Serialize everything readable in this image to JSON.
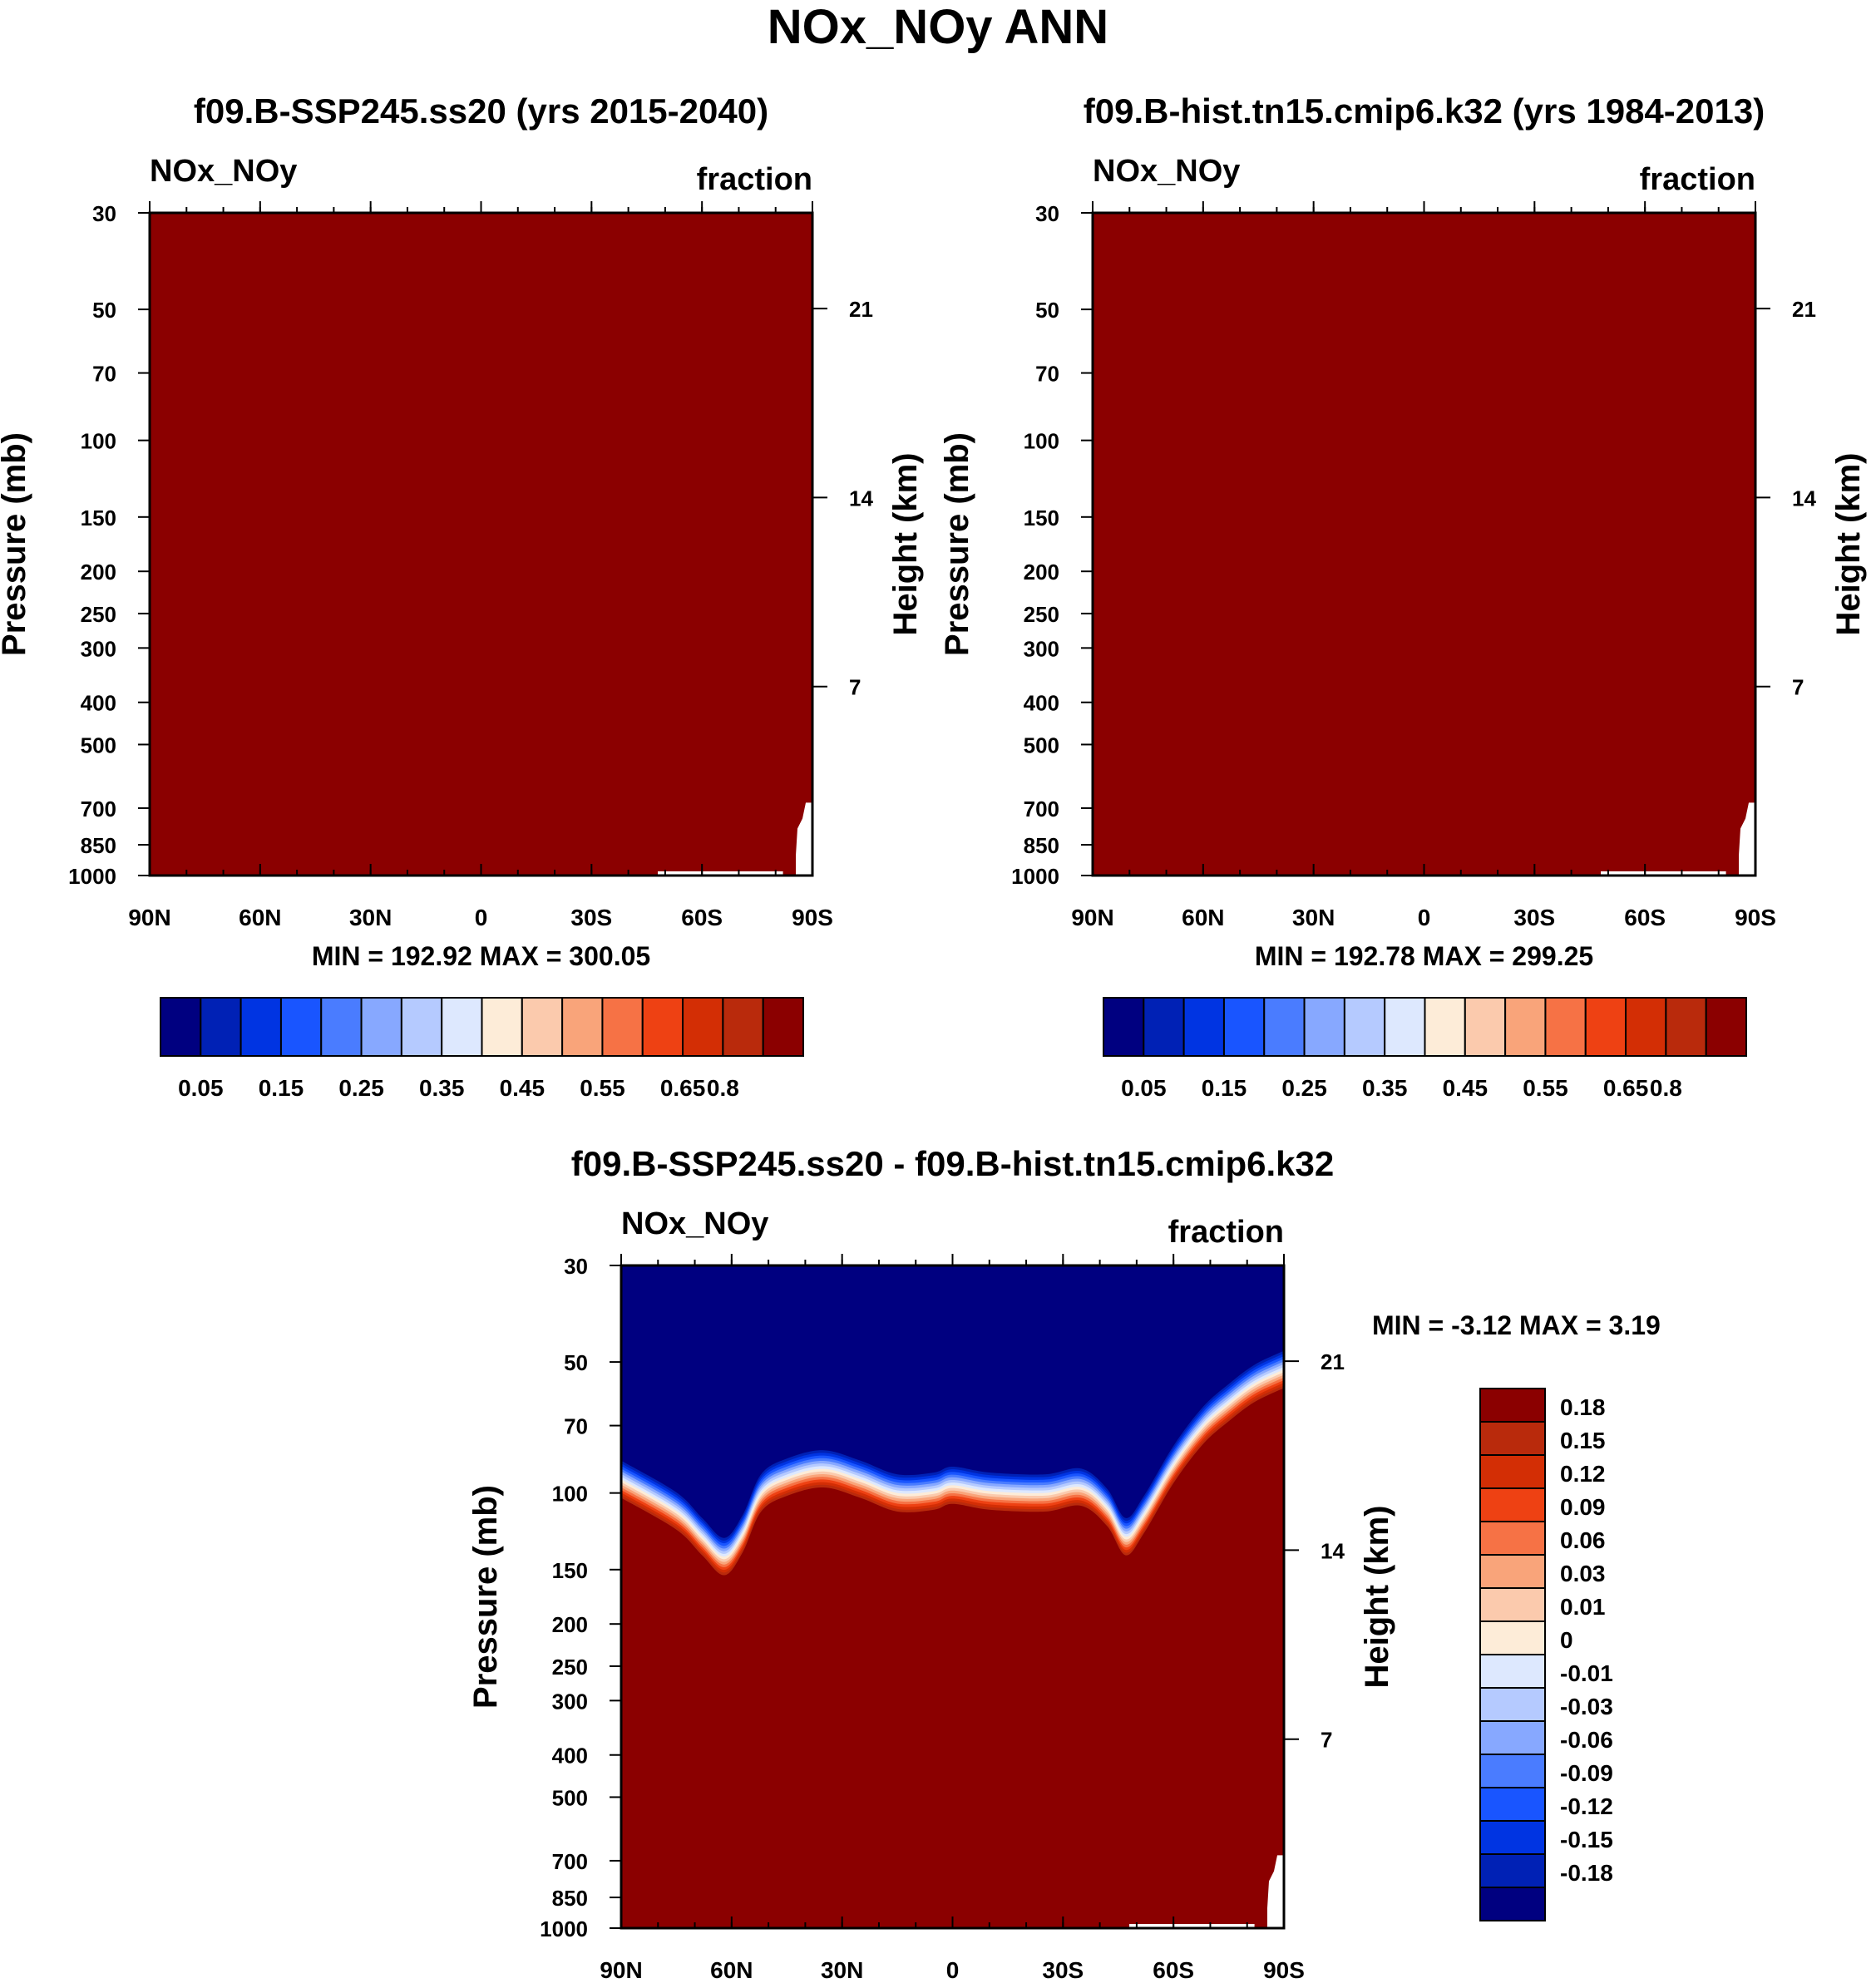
{
  "figure": {
    "title": "NOx_NOy ANN"
  },
  "colors": {
    "seq": [
      "#000080",
      "#0021b5",
      "#0034e2",
      "#1955ff",
      "#4a7cff",
      "#87a8ff",
      "#b5caff",
      "#dde8fe",
      "#fdecd8",
      "#fbcaad",
      "#f9a47a",
      "#f67245",
      "#ee4113",
      "#d32e05",
      "#b92a0c",
      "#8b0000"
    ],
    "diff": [
      "#000080",
      "#0021b5",
      "#0034e2",
      "#1955ff",
      "#4a7cff",
      "#87a8ff",
      "#b5caff",
      "#dde8fe",
      "#fdecd8",
      "#fbcaad",
      "#f9a47a",
      "#f67245",
      "#ee4113",
      "#d32e05",
      "#b92a0c",
      "#8b0000"
    ],
    "fill_main": "#8b0000",
    "fill_top": "#000080"
  },
  "chart_data": [
    {
      "type": "heatmap",
      "panel": "top-left",
      "title": "f09.B-SSP245.ss20 (yrs 2015-2040)",
      "left_label": "NOx_NOy",
      "right_label": "fraction",
      "ylabel": "Pressure (mb)",
      "ylabel_right": "Height (km)",
      "x_ticks": [
        "90N",
        "60N",
        "30N",
        "0",
        "30S",
        "60S",
        "90S"
      ],
      "x_values": [
        90,
        60,
        30,
        0,
        -30,
        -60,
        -90
      ],
      "y_ticks": [
        30,
        50,
        70,
        100,
        150,
        200,
        250,
        300,
        400,
        500,
        700,
        850,
        1000
      ],
      "ylim": [
        1000,
        30
      ],
      "height_ticks": [
        21,
        14,
        7
      ],
      "stats": "MIN = 192.92  MAX = 300.05",
      "colorbar_labels": [
        "0.05",
        "0.15",
        "0.25",
        "0.35",
        "0.45",
        "0.55",
        "0.65",
        "0.8"
      ],
      "colorbar_levels": [
        0.05,
        0.1,
        0.15,
        0.2,
        0.25,
        0.3,
        0.35,
        0.4,
        0.45,
        0.5,
        0.55,
        0.6,
        0.65,
        0.7,
        0.8
      ],
      "field_value_everywhere_above": 0.8,
      "missing_region": "surface near 90S (orography), below ~700 mb south of ~80S and near 1000 mb south of ~50S"
    },
    {
      "type": "heatmap",
      "panel": "top-right",
      "title": "f09.B-hist.tn15.cmip6.k32 (yrs 1984-2013)",
      "left_label": "NOx_NOy",
      "right_label": "fraction",
      "ylabel": "Pressure (mb)",
      "ylabel_right": "Height (km)",
      "x_ticks": [
        "90N",
        "60N",
        "30N",
        "0",
        "30S",
        "60S",
        "90S"
      ],
      "x_values": [
        90,
        60,
        30,
        0,
        -30,
        -60,
        -90
      ],
      "y_ticks": [
        30,
        50,
        70,
        100,
        150,
        200,
        250,
        300,
        400,
        500,
        700,
        850,
        1000
      ],
      "ylim": [
        1000,
        30
      ],
      "height_ticks": [
        21,
        14,
        7
      ],
      "stats": "MIN = 192.78  MAX = 299.25",
      "colorbar_labels": [
        "0.05",
        "0.15",
        "0.25",
        "0.35",
        "0.45",
        "0.55",
        "0.65",
        "0.8"
      ],
      "colorbar_levels": [
        0.05,
        0.1,
        0.15,
        0.2,
        0.25,
        0.3,
        0.35,
        0.4,
        0.45,
        0.5,
        0.55,
        0.6,
        0.65,
        0.7,
        0.8
      ],
      "field_value_everywhere_above": 0.8,
      "missing_region": "surface near 90S (orography)"
    },
    {
      "type": "heatmap",
      "panel": "bottom",
      "title": "f09.B-SSP245.ss20 - f09.B-hist.tn15.cmip6.k32",
      "left_label": "NOx_NOy",
      "right_label": "fraction",
      "ylabel": "Pressure (mb)",
      "ylabel_right": "Height (km)",
      "x_ticks": [
        "90N",
        "60N",
        "30N",
        "0",
        "30S",
        "60S",
        "90S"
      ],
      "x_values": [
        90,
        60,
        30,
        0,
        -30,
        -60,
        -90
      ],
      "y_ticks": [
        30,
        50,
        70,
        100,
        150,
        200,
        250,
        300,
        400,
        500,
        700,
        850,
        1000
      ],
      "ylim": [
        1000,
        30
      ],
      "height_ticks": [
        21,
        14,
        7
      ],
      "stats": "MIN =  -3.12  MAX =   3.19",
      "colorbar_labels": [
        "0.18",
        "0.15",
        "0.12",
        "0.09",
        "0.06",
        "0.03",
        "0.01",
        "0",
        "-0.01",
        "-0.03",
        "-0.06",
        "-0.09",
        "-0.12",
        "-0.15",
        "-0.18"
      ],
      "colorbar_levels": [
        -0.18,
        -0.15,
        -0.12,
        -0.09,
        -0.06,
        -0.03,
        -0.01,
        0,
        0.01,
        0.03,
        0.06,
        0.09,
        0.12,
        0.15,
        0.18
      ],
      "transition_boundary_mb": [
        {
          "lat": 90,
          "p": 93
        },
        {
          "lat": 75,
          "p": 110
        },
        {
          "lat": 68,
          "p": 126
        },
        {
          "lat": 62,
          "p": 140
        },
        {
          "lat": 57,
          "p": 124
        },
        {
          "lat": 52,
          "p": 100
        },
        {
          "lat": 45,
          "p": 92
        },
        {
          "lat": 35,
          "p": 88
        },
        {
          "lat": 25,
          "p": 93
        },
        {
          "lat": 15,
          "p": 100
        },
        {
          "lat": 5,
          "p": 99
        },
        {
          "lat": 0,
          "p": 96
        },
        {
          "lat": -10,
          "p": 99
        },
        {
          "lat": -25,
          "p": 100
        },
        {
          "lat": -35,
          "p": 97
        },
        {
          "lat": -42,
          "p": 108
        },
        {
          "lat": -47,
          "p": 126
        },
        {
          "lat": -52,
          "p": 112
        },
        {
          "lat": -60,
          "p": 86
        },
        {
          "lat": -68,
          "p": 70
        },
        {
          "lat": -75,
          "p": 62
        },
        {
          "lat": -82,
          "p": 56
        },
        {
          "lat": -90,
          "p": 52
        }
      ],
      "above_boundary": "below -0.18 (dark blue)",
      "below_boundary": "above 0.18 (dark red)"
    }
  ]
}
